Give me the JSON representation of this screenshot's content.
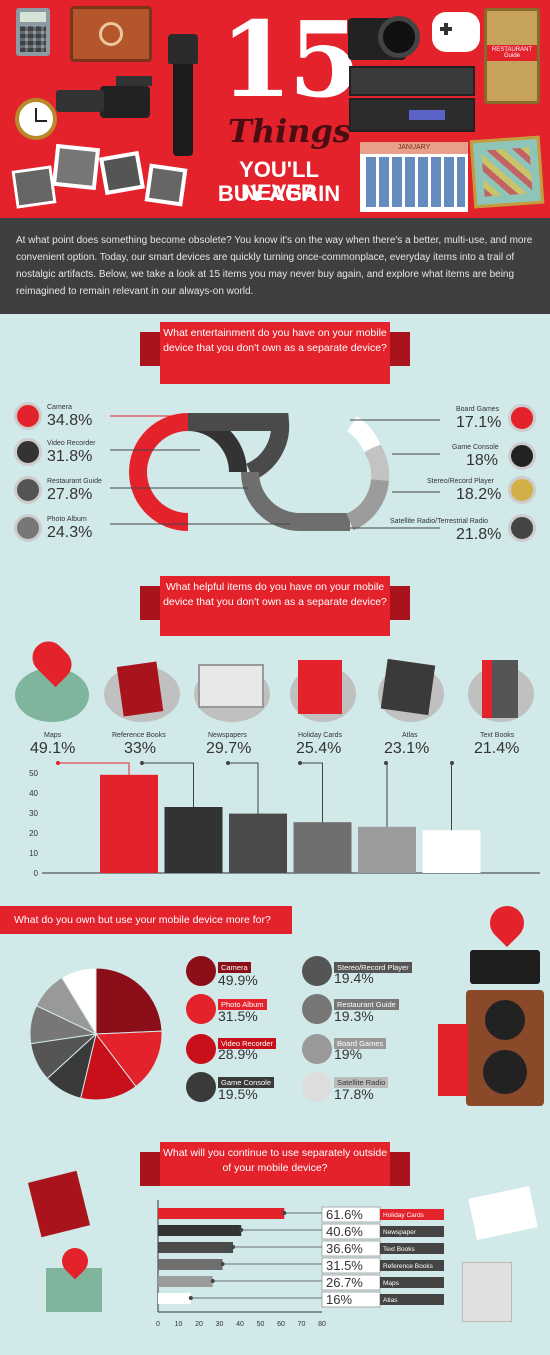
{
  "header": {
    "number": "15",
    "things": "Things",
    "subtitle_line1": "YOU'LL NEVER",
    "subtitle_line2": "BUY AGAIN",
    "calendar_month": "JANUARY",
    "guide_label": "RESTAURANT Guide"
  },
  "intro": "At what point does something become obsolete? You know it's on the way when there's a better, multi-use, and more convenient option. Today, our smart devices are quickly turning once-commonplace, everyday items into a trail of nostalgic artifacts. Below, we take a look at 15 items you may never buy again, and explore what items are being reimagined to remain relevant in our always-on world.",
  "colors": {
    "red": "#e3222c",
    "dark_red": "#a9141c",
    "bg": "#d2e9ea",
    "dark": "#3f3f41"
  },
  "chart_data": [
    {
      "type": "bar",
      "title": "What entertainment do you have on your mobile device that you don't own as a separate device?",
      "categories": [
        "Camera",
        "Video Recorder",
        "Restaurant Guide",
        "Photo Album",
        "Board Games",
        "Game Console",
        "Stereo/Record Player",
        "Satellite Radio/Terrestrial Radio"
      ],
      "values": [
        34.8,
        31.8,
        27.8,
        24.3,
        17.1,
        18,
        18.2,
        21.8
      ],
      "labels": [
        "34.8%",
        "31.8%",
        "27.8%",
        "24.3%",
        "17.1%",
        "18%",
        "18.2%",
        "21.8%"
      ]
    },
    {
      "type": "bar",
      "title": "What helpful items do you have on your mobile device that you don't own as a separate device?",
      "categories": [
        "Maps",
        "Reference Books",
        "Newspapers",
        "Holiday Cards",
        "Atlas",
        "Text Books"
      ],
      "values": [
        49.1,
        33,
        29.7,
        25.4,
        23.1,
        21.4
      ],
      "labels": [
        "49.1%",
        "33%",
        "29.7%",
        "25.4%",
        "23.1%",
        "21.4%"
      ],
      "yticks": [
        "0",
        "10",
        "20",
        "30",
        "40",
        "50"
      ],
      "ylim": [
        0,
        50
      ]
    },
    {
      "type": "pie",
      "title": "What do you own but use your mobile device more for?",
      "categories": [
        "Camera",
        "Photo Album",
        "Video Recorder",
        "Game Console",
        "Stereo/Record Player",
        "Restaurant Guide",
        "Board Games",
        "Satellite Radio"
      ],
      "values": [
        49.9,
        31.5,
        28.9,
        19.5,
        19.4,
        19.3,
        19,
        17.8
      ],
      "labels": [
        "49.9%",
        "31.5%",
        "28.9%",
        "19.5%",
        "19.4%",
        "19.3%",
        "19%",
        "17.8%"
      ]
    },
    {
      "type": "bar",
      "title": "What will you continue to use separately outside of your mobile device?",
      "categories": [
        "Holiday Cards",
        "Newspaper",
        "Text Books",
        "Reference Books",
        "Maps",
        "Atlas"
      ],
      "values": [
        61.6,
        40.6,
        36.6,
        31.5,
        26.7,
        16
      ],
      "labels": [
        "61.6%",
        "40.6%",
        "36.6%",
        "31.5%",
        "26.7%",
        "16%"
      ],
      "xticks": [
        "0",
        "10",
        "20",
        "30",
        "40",
        "50",
        "60",
        "70",
        "80"
      ],
      "xlim": [
        0,
        80
      ]
    }
  ]
}
